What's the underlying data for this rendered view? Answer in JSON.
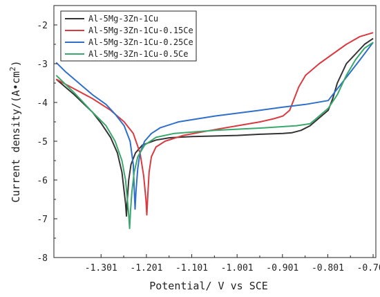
{
  "chart_data": {
    "type": "line",
    "title": "",
    "xlabel": "Potential/ V vs SCE",
    "ylabel_prefix": "Current density/(A•cm",
    "ylabel_sup": "2",
    "ylabel_suffix": ")",
    "xlim": [
      -1.405,
      -0.695
    ],
    "ylim": [
      -8,
      -1.5
    ],
    "x_ticks": [
      -1.301,
      -1.201,
      -1.101,
      -1.001,
      -0.901,
      -0.801,
      -0.701
    ],
    "x_tick_labels": [
      "-1.301",
      "-1.201",
      "-1.101",
      "-1.001",
      "-0.901",
      "-0.801",
      "-0.701"
    ],
    "y_ticks": [
      -2,
      -3,
      -4,
      -5,
      -6,
      -7,
      -8
    ],
    "y_tick_labels": [
      "-2",
      "-3",
      "-4",
      "-5",
      "-6",
      "-7",
      "-8"
    ],
    "grid": false,
    "legend_position": "top-left",
    "series": [
      {
        "name": "Al-5Mg-3Zn-1Cu",
        "color": "#333333",
        "points": [
          [
            -1.4,
            -3.4
          ],
          [
            -1.36,
            -3.8
          ],
          [
            -1.32,
            -4.25
          ],
          [
            -1.3,
            -4.55
          ],
          [
            -1.28,
            -4.9
          ],
          [
            -1.265,
            -5.3
          ],
          [
            -1.255,
            -5.8
          ],
          [
            -1.25,
            -6.3
          ],
          [
            -1.247,
            -6.6
          ],
          [
            -1.245,
            -6.93
          ],
          [
            -1.243,
            -6.5
          ],
          [
            -1.24,
            -6.0
          ],
          [
            -1.235,
            -5.6
          ],
          [
            -1.225,
            -5.3
          ],
          [
            -1.21,
            -5.1
          ],
          [
            -1.18,
            -4.97
          ],
          [
            -1.15,
            -4.91
          ],
          [
            -1.1,
            -4.88
          ],
          [
            -1.0,
            -4.85
          ],
          [
            -0.95,
            -4.82
          ],
          [
            -0.9,
            -4.8
          ],
          [
            -0.88,
            -4.78
          ],
          [
            -0.86,
            -4.72
          ],
          [
            -0.84,
            -4.6
          ],
          [
            -0.82,
            -4.4
          ],
          [
            -0.8,
            -4.2
          ],
          [
            -0.79,
            -3.9
          ],
          [
            -0.78,
            -3.5
          ],
          [
            -0.76,
            -3.0
          ],
          [
            -0.74,
            -2.75
          ],
          [
            -0.72,
            -2.5
          ],
          [
            -0.701,
            -2.35
          ]
        ]
      },
      {
        "name": "Al-5Mg-3Zn-1Cu-0.15Ce",
        "color": "#d93a3f",
        "points": [
          [
            -1.4,
            -3.4
          ],
          [
            -1.36,
            -3.65
          ],
          [
            -1.32,
            -3.9
          ],
          [
            -1.28,
            -4.2
          ],
          [
            -1.25,
            -4.5
          ],
          [
            -1.23,
            -4.8
          ],
          [
            -1.215,
            -5.3
          ],
          [
            -1.207,
            -5.9
          ],
          [
            -1.202,
            -6.5
          ],
          [
            -1.2,
            -6.9
          ],
          [
            -1.198,
            -6.4
          ],
          [
            -1.195,
            -5.8
          ],
          [
            -1.19,
            -5.4
          ],
          [
            -1.18,
            -5.15
          ],
          [
            -1.16,
            -5.0
          ],
          [
            -1.12,
            -4.85
          ],
          [
            -1.05,
            -4.7
          ],
          [
            -1.0,
            -4.6
          ],
          [
            -0.95,
            -4.5
          ],
          [
            -0.92,
            -4.42
          ],
          [
            -0.9,
            -4.35
          ],
          [
            -0.885,
            -4.2
          ],
          [
            -0.875,
            -3.9
          ],
          [
            -0.865,
            -3.6
          ],
          [
            -0.85,
            -3.3
          ],
          [
            -0.82,
            -3.0
          ],
          [
            -0.79,
            -2.75
          ],
          [
            -0.76,
            -2.5
          ],
          [
            -0.73,
            -2.3
          ],
          [
            -0.701,
            -2.2
          ]
        ]
      },
      {
        "name": "Al-5Mg-3Zn-1Cu-0.25Ce",
        "color": "#2f6fc9",
        "points": [
          [
            -1.4,
            -2.97
          ],
          [
            -1.38,
            -3.2
          ],
          [
            -1.35,
            -3.5
          ],
          [
            -1.32,
            -3.8
          ],
          [
            -1.29,
            -4.05
          ],
          [
            -1.27,
            -4.3
          ],
          [
            -1.25,
            -4.6
          ],
          [
            -1.237,
            -5.0
          ],
          [
            -1.23,
            -5.6
          ],
          [
            -1.228,
            -6.2
          ],
          [
            -1.226,
            -6.75
          ],
          [
            -1.224,
            -6.3
          ],
          [
            -1.22,
            -5.7
          ],
          [
            -1.215,
            -5.3
          ],
          [
            -1.205,
            -5.0
          ],
          [
            -1.19,
            -4.8
          ],
          [
            -1.17,
            -4.65
          ],
          [
            -1.13,
            -4.5
          ],
          [
            -1.05,
            -4.35
          ],
          [
            -0.95,
            -4.2
          ],
          [
            -0.9,
            -4.12
          ],
          [
            -0.85,
            -4.05
          ],
          [
            -0.8,
            -3.95
          ],
          [
            -0.79,
            -3.8
          ],
          [
            -0.77,
            -3.5
          ],
          [
            -0.75,
            -3.2
          ],
          [
            -0.73,
            -2.9
          ],
          [
            -0.701,
            -2.45
          ]
        ]
      },
      {
        "name": "Al-5Mg-3Zn-1Cu-0.5Ce",
        "color": "#3aa76d",
        "points": [
          [
            -1.4,
            -3.3
          ],
          [
            -1.36,
            -3.75
          ],
          [
            -1.32,
            -4.25
          ],
          [
            -1.29,
            -4.6
          ],
          [
            -1.27,
            -5.0
          ],
          [
            -1.255,
            -5.5
          ],
          [
            -1.247,
            -6.0
          ],
          [
            -1.243,
            -6.5
          ],
          [
            -1.24,
            -6.9
          ],
          [
            -1.238,
            -7.25
          ],
          [
            -1.236,
            -6.8
          ],
          [
            -1.233,
            -6.3
          ],
          [
            -1.228,
            -5.8
          ],
          [
            -1.22,
            -5.4
          ],
          [
            -1.205,
            -5.1
          ],
          [
            -1.18,
            -4.9
          ],
          [
            -1.14,
            -4.8
          ],
          [
            -1.05,
            -4.72
          ],
          [
            -0.95,
            -4.66
          ],
          [
            -0.87,
            -4.6
          ],
          [
            -0.84,
            -4.55
          ],
          [
            -0.82,
            -4.35
          ],
          [
            -0.8,
            -4.15
          ],
          [
            -0.78,
            -3.8
          ],
          [
            -0.76,
            -3.3
          ],
          [
            -0.74,
            -2.9
          ],
          [
            -0.72,
            -2.6
          ],
          [
            -0.701,
            -2.45
          ]
        ]
      }
    ]
  }
}
